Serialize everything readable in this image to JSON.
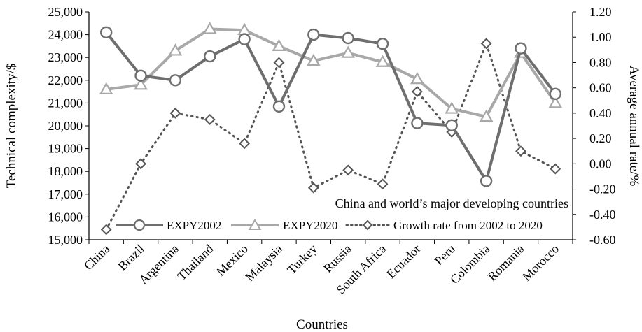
{
  "chart_data": {
    "type": "line",
    "categories": [
      "China",
      "Brazil",
      "Argentina",
      "Thailand",
      "Mexico",
      "Malaysia",
      "Turkey",
      "Russia",
      "South Africa",
      "Ecuador",
      "Peru",
      "Colombia",
      "Romania",
      "Morocco"
    ],
    "series": [
      {
        "name": "EXPY2002",
        "axis": "left",
        "color": "#6e6e6e",
        "marker": "circle",
        "line_style": "solid",
        "values": [
          24100,
          22200,
          22000,
          23050,
          23800,
          20850,
          24000,
          23850,
          23600,
          20120,
          20020,
          17580,
          23400,
          21400
        ]
      },
      {
        "name": "EXPY2020",
        "axis": "left",
        "color": "#a8a8a8",
        "marker": "triangle",
        "line_style": "solid",
        "values": [
          21600,
          21800,
          23300,
          24250,
          24200,
          23500,
          22850,
          23200,
          22800,
          22050,
          20750,
          20400,
          23200,
          21000
        ]
      },
      {
        "name": "Growth rate from 2002 to 2020",
        "axis": "right",
        "color": "#555555",
        "marker": "diamond",
        "line_style": "dotted",
        "values": [
          -0.52,
          0.0,
          0.4,
          0.35,
          0.16,
          0.8,
          -0.19,
          -0.05,
          -0.16,
          0.57,
          0.25,
          0.95,
          0.1,
          -0.04
        ]
      }
    ],
    "y_left": {
      "label": "Technical complexity/$",
      "lim": [
        15000,
        25000
      ],
      "ticks": [
        "15,000",
        "16,000",
        "17,000",
        "18,000",
        "19,000",
        "20,000",
        "21,000",
        "22,000",
        "23,000",
        "24,000",
        "25,000"
      ]
    },
    "y_right": {
      "label": "Average annual rate/%",
      "lim": [
        -0.6,
        1.2
      ],
      "ticks": [
        "-0.60",
        "-0.40",
        "-0.20",
        "0.00",
        "0.20",
        "0.40",
        "0.60",
        "0.80",
        "1.00",
        "1.20"
      ]
    },
    "xlabel": "Countries",
    "annotation": "China and world’s major developing countries",
    "grid": false,
    "legend_position": "bottom-right"
  }
}
